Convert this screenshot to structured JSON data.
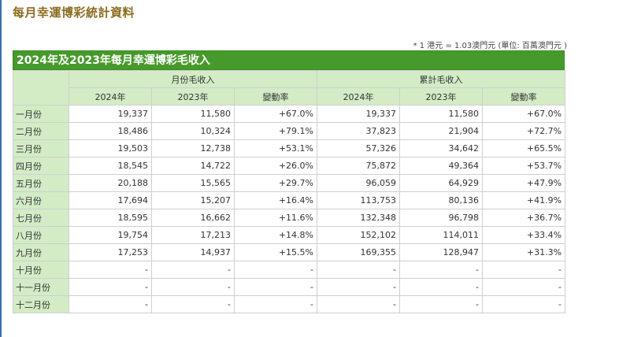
{
  "page_title": "每月幸運博彩統計資料",
  "note": "* 1 港元 = 1.03澳門元 (單位: 百萬澳門元 )",
  "table": {
    "title": "2024年及2023年每月幸運博彩毛收入",
    "group_monthly": "月份毛收入",
    "group_cumulative": "累計毛收入",
    "col_2024": "2024年",
    "col_2023": "2023年",
    "col_change": "變動率",
    "rows": [
      {
        "month": "一月份",
        "m2024": "19,337",
        "m2023": "11,580",
        "mchg": "+67.0%",
        "c2024": "19,337",
        "c2023": "11,580",
        "cchg": "+67.0%"
      },
      {
        "month": "二月份",
        "m2024": "18,486",
        "m2023": "10,324",
        "mchg": "+79.1%",
        "c2024": "37,823",
        "c2023": "21,904",
        "cchg": "+72.7%"
      },
      {
        "month": "三月份",
        "m2024": "19,503",
        "m2023": "12,738",
        "mchg": "+53.1%",
        "c2024": "57,326",
        "c2023": "34,642",
        "cchg": "+65.5%"
      },
      {
        "month": "四月份",
        "m2024": "18,545",
        "m2023": "14,722",
        "mchg": "+26.0%",
        "c2024": "75,872",
        "c2023": "49,364",
        "cchg": "+53.7%"
      },
      {
        "month": "五月份",
        "m2024": "20,188",
        "m2023": "15,565",
        "mchg": "+29.7%",
        "c2024": "96,059",
        "c2023": "64,929",
        "cchg": "+47.9%"
      },
      {
        "month": "六月份",
        "m2024": "17,694",
        "m2023": "15,207",
        "mchg": "+16.4%",
        "c2024": "113,753",
        "c2023": "80,136",
        "cchg": "+41.9%"
      },
      {
        "month": "七月份",
        "m2024": "18,595",
        "m2023": "16,662",
        "mchg": "+11.6%",
        "c2024": "132,348",
        "c2023": "96,798",
        "cchg": "+36.7%"
      },
      {
        "month": "八月份",
        "m2024": "19,754",
        "m2023": "17,213",
        "mchg": "+14.8%",
        "c2024": "152,102",
        "c2023": "114,011",
        "cchg": "+33.4%"
      },
      {
        "month": "九月份",
        "m2024": "17,253",
        "m2023": "14,937",
        "mchg": "+15.5%",
        "c2024": "169,355",
        "c2023": "128,947",
        "cchg": "+31.3%"
      },
      {
        "month": "十月份",
        "m2024": "-",
        "m2023": "-",
        "mchg": "-",
        "c2024": "-",
        "c2023": "-",
        "cchg": "-"
      },
      {
        "month": "十一月份",
        "m2024": "-",
        "m2023": "-",
        "mchg": "-",
        "c2024": "-",
        "c2023": "-",
        "cchg": "-"
      },
      {
        "month": "十二月份",
        "m2024": "-",
        "m2023": "-",
        "mchg": "-",
        "c2024": "-",
        "c2023": "-",
        "cchg": "-"
      }
    ]
  }
}
